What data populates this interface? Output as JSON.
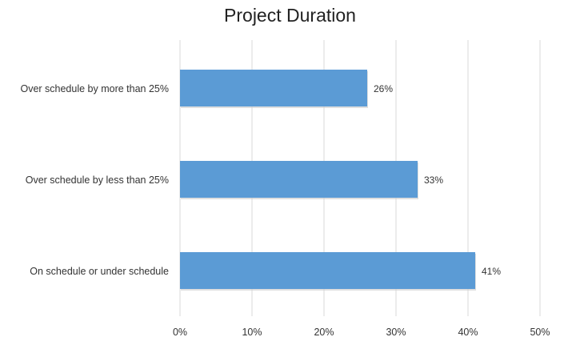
{
  "chart_data": {
    "type": "bar",
    "orientation": "horizontal",
    "title": "Project Duration",
    "categories": [
      "Over schedule by more than 25%",
      "Over schedule by less than 25%",
      "On schedule or under schedule"
    ],
    "values": [
      26,
      33,
      41
    ],
    "data_labels": [
      "26%",
      "33%",
      "41%"
    ],
    "xlim": [
      0,
      50
    ],
    "x_ticks": [
      0,
      10,
      20,
      30,
      40,
      50
    ],
    "x_tick_labels": [
      "0%",
      "10%",
      "20%",
      "30%",
      "40%",
      "50%"
    ],
    "xlabel": "",
    "ylabel": "",
    "grid": "vertical",
    "legend": "none",
    "bar_color": "#5b9bd5",
    "grid_color": "#d9d9d9"
  }
}
